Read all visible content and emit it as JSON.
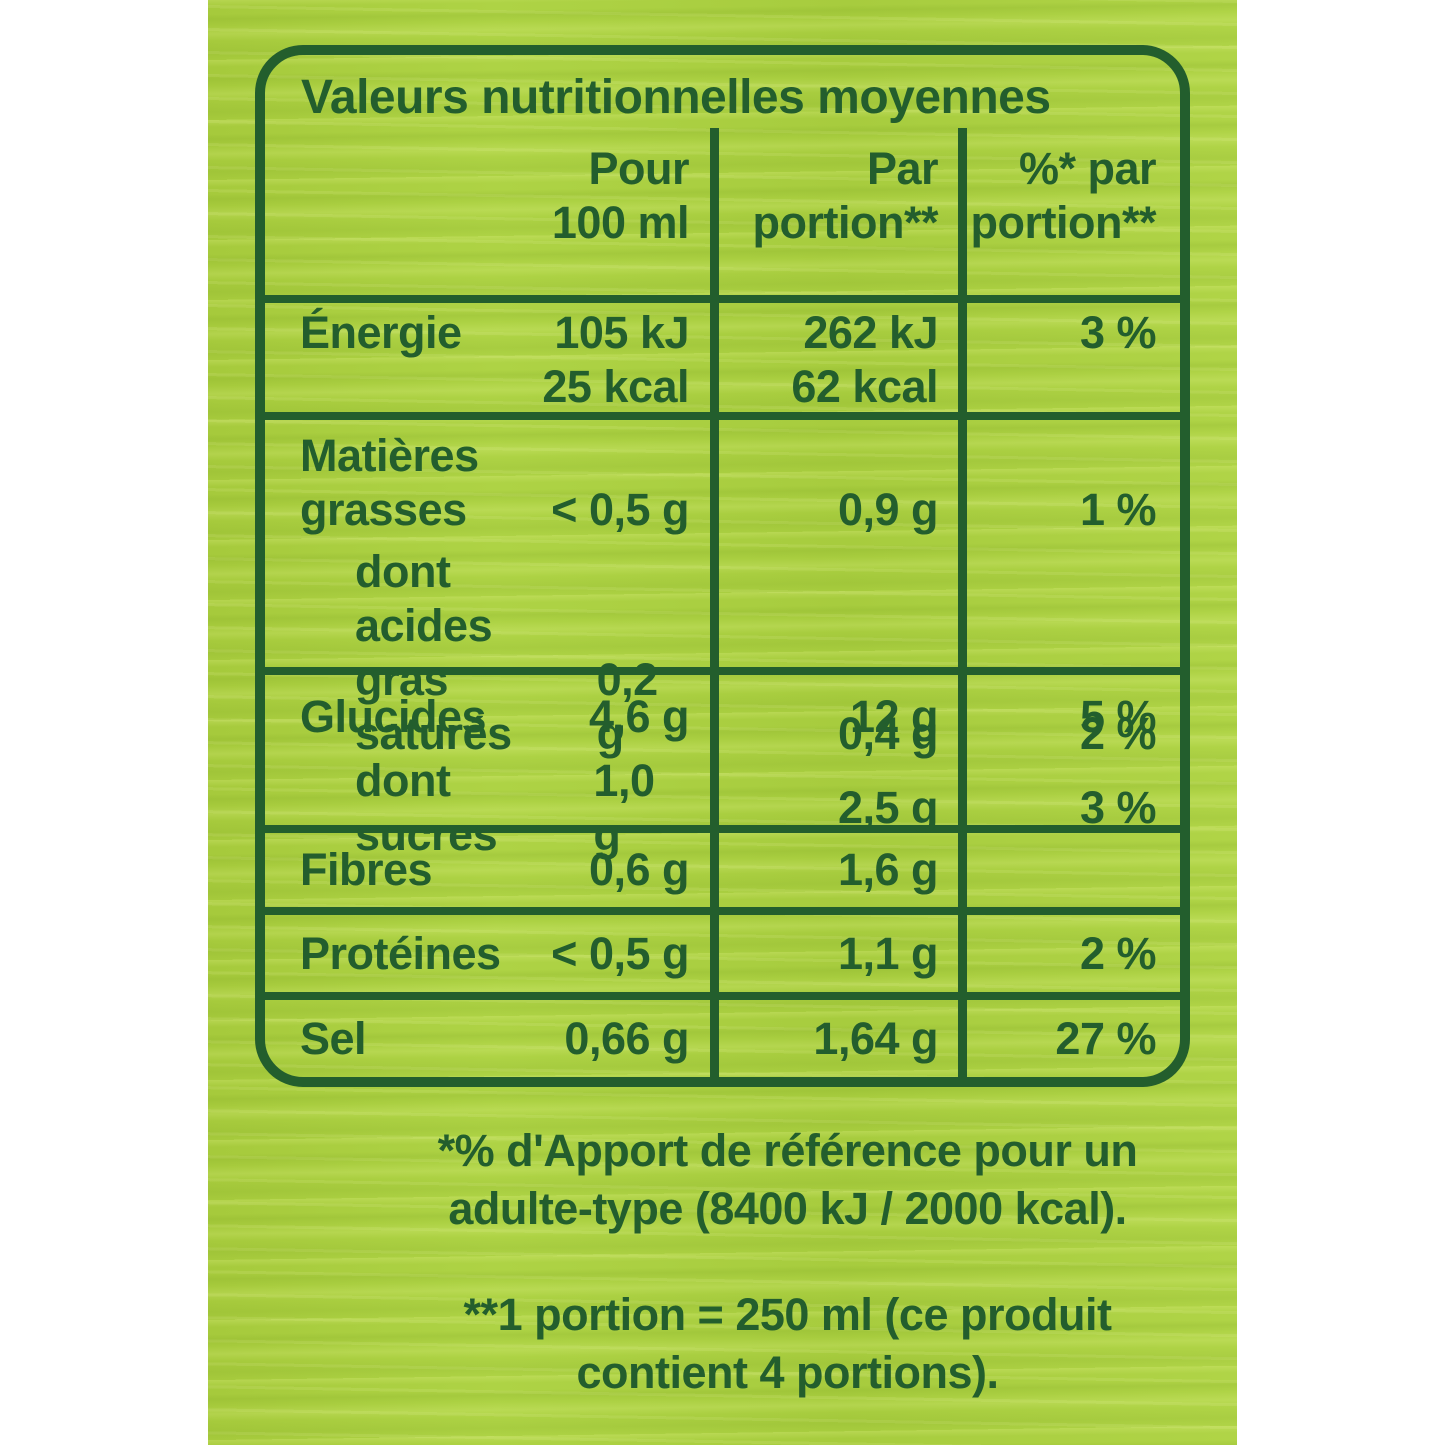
{
  "header": {
    "title": "Valeurs nutritionnelles moyennes",
    "col_per_100ml": "Pour\n100 ml",
    "col_per_portion": "Par\nportion**",
    "col_pct_portion": "%* par\nportion**"
  },
  "table": {
    "rows": [
      {
        "id": "energie",
        "label": "Énergie",
        "per_100ml": "105 kJ\n25 kcal",
        "per_portion": "262 kJ\n62 kcal",
        "pct_portion": "3 %"
      },
      {
        "id": "matieres-grasses",
        "label": "Matières\ngrasses",
        "per_100ml": "< 0,5 g",
        "per_portion": "0,9 g",
        "pct_portion": "1 %"
      },
      {
        "id": "acides-gras-satures",
        "label": "dont acides\ngras saturés",
        "per_100ml": "0,2 g",
        "per_portion": "0,4 g",
        "pct_portion": "2 %"
      },
      {
        "id": "glucides",
        "label": "Glucides",
        "per_100ml": "4,6 g",
        "per_portion": "12 g",
        "pct_portion": "5 %"
      },
      {
        "id": "dont-sucres",
        "label": "dont sucres",
        "per_100ml": "1,0 g",
        "per_portion": "2,5 g",
        "pct_portion": "3 %"
      },
      {
        "id": "fibres",
        "label": "Fibres",
        "per_100ml": "0,6 g",
        "per_portion": "1,6 g",
        "pct_portion": ""
      },
      {
        "id": "proteines",
        "label": "Protéines",
        "per_100ml": "< 0,5 g",
        "per_portion": "1,1 g",
        "pct_portion": "2 %"
      },
      {
        "id": "sel",
        "label": "Sel",
        "per_100ml": "0,66 g",
        "per_portion": "1,64 g",
        "pct_portion": "27 %"
      }
    ]
  },
  "footnotes": {
    "reference_intake_line1": "*% d'Apport de référence pour un",
    "reference_intake_line2": "adulte-type (8400 kJ / 2000 kcal).",
    "portion_definition_line1": "**1 portion = 250 ml (ce produit",
    "portion_definition_line2": "contient 4 portions)."
  },
  "colors": {
    "panel_green": "#a9cd40",
    "ink_green": "#235e2d",
    "page_white": "#ffffff"
  }
}
